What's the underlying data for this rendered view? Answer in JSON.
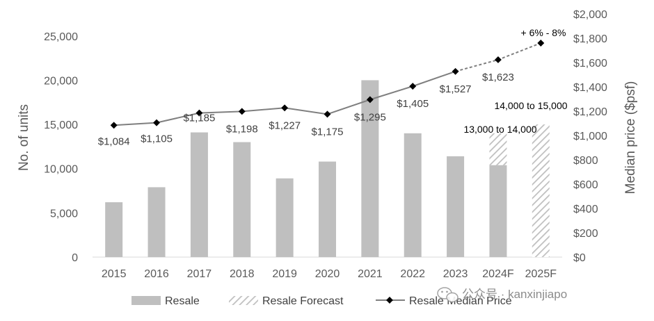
{
  "chart_data": {
    "type": "bar",
    "categories": [
      "2015",
      "2016",
      "2017",
      "2018",
      "2019",
      "2020",
      "2021",
      "2022",
      "2023",
      "2024F",
      "2025F"
    ],
    "series": [
      {
        "name": "Resale",
        "kind": "bar",
        "axis": "left",
        "values": [
          6200,
          7900,
          14100,
          13000,
          8900,
          10800,
          20000,
          14000,
          11400,
          10400,
          null
        ]
      },
      {
        "name": "Resale Forecast",
        "kind": "bar-stacked-hatched",
        "axis": "left",
        "values": [
          null,
          null,
          null,
          null,
          null,
          null,
          null,
          null,
          null,
          3600,
          15000
        ]
      },
      {
        "name": "Resale Median Price",
        "kind": "line",
        "axis": "right",
        "values": [
          1084,
          1105,
          1185,
          1198,
          1227,
          1175,
          1295,
          1405,
          1527,
          1623,
          1760
        ],
        "labels": [
          "$1,084",
          "$1,105",
          "$1,185",
          "$1,198",
          "$1,227",
          "$1,175",
          "$1,295",
          "$1,405",
          "$1,527",
          "$1,623",
          ""
        ]
      }
    ],
    "y_left": {
      "label": "No. of units",
      "ylim": [
        0,
        27500
      ],
      "ticks": [
        0,
        5000,
        10000,
        15000,
        20000,
        25000
      ],
      "tick_labels": [
        "0",
        "5,000",
        "10,000",
        "15,000",
        "20,000",
        "25,000"
      ]
    },
    "y_right": {
      "label": "Median price ($psf)",
      "ylim": [
        0,
        2000
      ],
      "ticks": [
        0,
        200,
        400,
        600,
        800,
        1000,
        1200,
        1400,
        1600,
        1800,
        2000
      ],
      "tick_labels": [
        "$0",
        "$200",
        "$400",
        "$600",
        "$800",
        "$1,000",
        "$1,200",
        "$1,400",
        "$1,600",
        "$1,800",
        "$2,000"
      ]
    },
    "annotations": {
      "growth": "+ 6% - 8%",
      "forecast_2025": "14,000 to 15,000",
      "forecast_2024": "13,000 to 14,000"
    },
    "legend": {
      "position": "bottom",
      "items": [
        "Resale",
        "Resale Forecast",
        "Resale Median Price"
      ]
    },
    "grid": false,
    "colors": {
      "bar": "#bfbfbf",
      "hatch": "#bfbfbf",
      "line": "#7f7f7f",
      "marker": "#000000"
    }
  },
  "watermark": {
    "text": "公众号 · kanxinjiapo",
    "icon": "wechat-icon"
  }
}
